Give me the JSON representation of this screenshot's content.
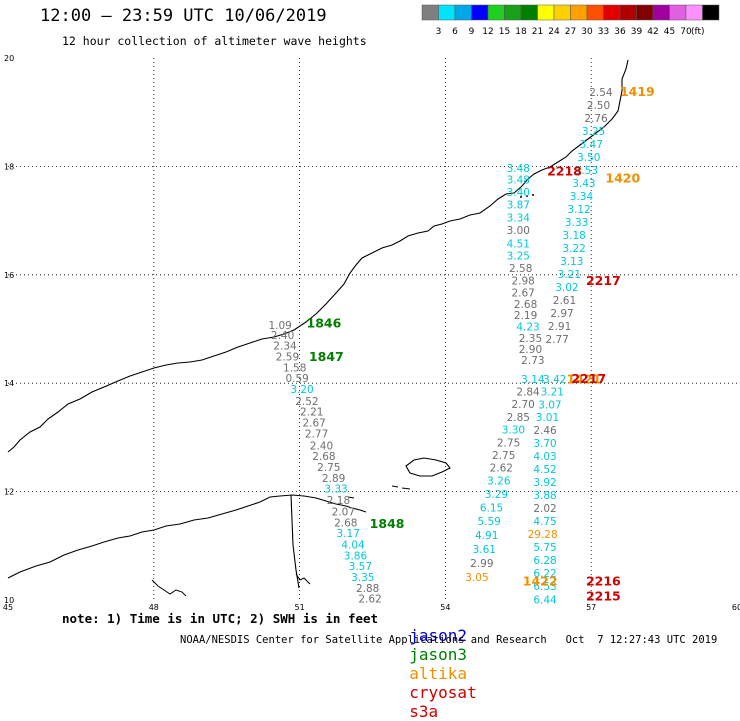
{
  "header": {
    "title": "12:00 – 23:59 UTC 10/06/2019",
    "subtitle": "12 hour collection of altimeter wave heights"
  },
  "scale": {
    "unit": "(ft)",
    "labels": [
      "3",
      "6",
      "9",
      "12",
      "15",
      "18",
      "21",
      "24",
      "27",
      "30",
      "33",
      "36",
      "39",
      "42",
      "45",
      "70"
    ],
    "colors": [
      "#7f7f7f",
      "#00e5ff",
      "#00a8e8",
      "#0000ff",
      "#20d020",
      "#18a018",
      "#008000",
      "#ffff00",
      "#ffd000",
      "#ffa000",
      "#ff5000",
      "#e00000",
      "#b00000",
      "#800000",
      "#a000a0",
      "#e060e0",
      "#ff90ff",
      "#000000"
    ]
  },
  "axes": {
    "x_ticks": [
      "45",
      "48",
      "51",
      "54",
      "57",
      "60"
    ],
    "y_ticks": [
      "10",
      "12",
      "14",
      "16",
      "18",
      "20"
    ],
    "lon_range": [
      45,
      60
    ],
    "lat_range": [
      10,
      20
    ]
  },
  "colors": {
    "gray": "#6e6e6e",
    "cyan": "#00c8d8",
    "green": "#008000",
    "orange": "#f09000",
    "red": "#d00000",
    "blue": "#0000d0"
  },
  "passes": [
    {
      "label": "1846",
      "sat": "jason3",
      "lon": 51.5,
      "lat": 15.03
    },
    {
      "label": "1847",
      "sat": "jason3",
      "lon": 51.55,
      "lat": 14.41
    },
    {
      "label": "1848",
      "sat": "jason3",
      "lon": 52.8,
      "lat": 11.33
    },
    {
      "label": "1419",
      "sat": "altika",
      "lon": 57.95,
      "lat": 19.3
    },
    {
      "label": "1420",
      "sat": "altika",
      "lon": 57.65,
      "lat": 17.7
    },
    {
      "label": "1422",
      "sat": "altika",
      "lon": 55.95,
      "lat": 10.27
    },
    {
      "label": "1421",
      "sat": "altika",
      "lon": 56.85,
      "lat": 13.99
    },
    {
      "label": "2218",
      "sat": "s3a",
      "lon": 56.45,
      "lat": 17.83
    },
    {
      "label": "2217",
      "sat": "s3a",
      "lon": 57.25,
      "lat": 15.81
    },
    {
      "label": "2217",
      "sat": "s3a",
      "lon": 56.95,
      "lat": 14.0
    },
    {
      "label": "2216",
      "sat": "s3a",
      "lon": 57.25,
      "lat": 10.27
    },
    {
      "label": "2215",
      "sat": "s3a",
      "lon": 57.25,
      "lat": 9.99
    }
  ],
  "observations": [
    {
      "v": "1.09",
      "c": "gray",
      "lon": 50.6,
      "lat": 15.0
    },
    {
      "v": "2.40",
      "c": "gray",
      "lon": 50.65,
      "lat": 14.82
    },
    {
      "v": "2.34",
      "c": "gray",
      "lon": 50.7,
      "lat": 14.62
    },
    {
      "v": "2.59",
      "c": "gray",
      "lon": 50.75,
      "lat": 14.42
    },
    {
      "v": "1.58",
      "c": "gray",
      "lon": 50.9,
      "lat": 14.22
    },
    {
      "v": "0.59",
      "c": "gray",
      "lon": 50.95,
      "lat": 14.02
    },
    {
      "v": "3.20",
      "c": "cyan",
      "lon": 51.05,
      "lat": 13.82
    },
    {
      "v": "2.52",
      "c": "gray",
      "lon": 51.15,
      "lat": 13.6
    },
    {
      "v": "2.21",
      "c": "gray",
      "lon": 51.25,
      "lat": 13.4
    },
    {
      "v": "2.67",
      "c": "gray",
      "lon": 51.3,
      "lat": 13.2
    },
    {
      "v": "2.77",
      "c": "gray",
      "lon": 51.35,
      "lat": 13.0
    },
    {
      "v": "2.40",
      "c": "gray",
      "lon": 51.45,
      "lat": 12.78
    },
    {
      "v": "2.68",
      "c": "gray",
      "lon": 51.5,
      "lat": 12.58
    },
    {
      "v": "2.75",
      "c": "gray",
      "lon": 51.6,
      "lat": 12.38
    },
    {
      "v": "2.89",
      "c": "gray",
      "lon": 51.7,
      "lat": 12.18
    },
    {
      "v": "3.33",
      "c": "cyan",
      "lon": 51.75,
      "lat": 11.98
    },
    {
      "v": "2.18",
      "c": "gray",
      "lon": 51.8,
      "lat": 11.77
    },
    {
      "v": "2.07",
      "c": "gray",
      "lon": 51.9,
      "lat": 11.56
    },
    {
      "v": "2.68",
      "c": "gray",
      "lon": 51.95,
      "lat": 11.36
    },
    {
      "v": "3.17",
      "c": "cyan",
      "lon": 52.0,
      "lat": 11.16
    },
    {
      "v": "4.04",
      "c": "cyan",
      "lon": 52.1,
      "lat": 10.95
    },
    {
      "v": "3.86",
      "c": "cyan",
      "lon": 52.15,
      "lat": 10.75
    },
    {
      "v": "3.57",
      "c": "cyan",
      "lon": 52.25,
      "lat": 10.55
    },
    {
      "v": "3.35",
      "c": "cyan",
      "lon": 52.3,
      "lat": 10.35
    },
    {
      "v": "2.88",
      "c": "gray",
      "lon": 52.4,
      "lat": 10.15
    },
    {
      "v": "2.62",
      "c": "gray",
      "lon": 52.45,
      "lat": 9.95
    },
    {
      "v": "3.48",
      "c": "cyan",
      "lon": 55.5,
      "lat": 17.9
    },
    {
      "v": "3.48",
      "c": "cyan",
      "lon": 55.5,
      "lat": 17.68
    },
    {
      "v": "3.40",
      "c": "cyan",
      "lon": 55.5,
      "lat": 17.45
    },
    {
      "v": "3.87",
      "c": "cyan",
      "lon": 55.5,
      "lat": 17.22
    },
    {
      "v": "3.34",
      "c": "cyan",
      "lon": 55.5,
      "lat": 16.98
    },
    {
      "v": "3.00",
      "c": "gray",
      "lon": 55.5,
      "lat": 16.75
    },
    {
      "v": "4.51",
      "c": "cyan",
      "lon": 55.5,
      "lat": 16.5
    },
    {
      "v": "3.25",
      "c": "cyan",
      "lon": 55.5,
      "lat": 16.28
    },
    {
      "v": "2.58",
      "c": "gray",
      "lon": 55.55,
      "lat": 16.05
    },
    {
      "v": "2.98",
      "c": "gray",
      "lon": 55.6,
      "lat": 15.82
    },
    {
      "v": "2.67",
      "c": "gray",
      "lon": 55.6,
      "lat": 15.6
    },
    {
      "v": "2.68",
      "c": "gray",
      "lon": 55.65,
      "lat": 15.39
    },
    {
      "v": "2.19",
      "c": "gray",
      "lon": 55.65,
      "lat": 15.18
    },
    {
      "v": "4.23",
      "c": "cyan",
      "lon": 55.7,
      "lat": 14.97
    },
    {
      "v": "2.35",
      "c": "gray",
      "lon": 55.75,
      "lat": 14.76
    },
    {
      "v": "2.90",
      "c": "gray",
      "lon": 55.75,
      "lat": 14.56
    },
    {
      "v": "2.73",
      "c": "gray",
      "lon": 55.8,
      "lat": 14.35
    },
    {
      "v": "3.14",
      "c": "cyan",
      "lon": 55.8,
      "lat": 14.0
    },
    {
      "v": "2.84",
      "c": "gray",
      "lon": 55.7,
      "lat": 13.77
    },
    {
      "v": "2.70",
      "c": "gray",
      "lon": 55.6,
      "lat": 13.54
    },
    {
      "v": "2.85",
      "c": "gray",
      "lon": 55.5,
      "lat": 13.3
    },
    {
      "v": "3.30",
      "c": "cyan",
      "lon": 55.4,
      "lat": 13.07
    },
    {
      "v": "2.75",
      "c": "gray",
      "lon": 55.3,
      "lat": 12.83
    },
    {
      "v": "2.75",
      "c": "gray",
      "lon": 55.2,
      "lat": 12.6
    },
    {
      "v": "2.62",
      "c": "gray",
      "lon": 55.15,
      "lat": 12.37
    },
    {
      "v": "3.26",
      "c": "cyan",
      "lon": 55.1,
      "lat": 12.13
    },
    {
      "v": "3.29",
      "c": "cyan",
      "lon": 55.05,
      "lat": 11.88
    },
    {
      "v": "6.15",
      "c": "cyan",
      "lon": 54.95,
      "lat": 11.63
    },
    {
      "v": "5.59",
      "c": "cyan",
      "lon": 54.9,
      "lat": 11.38
    },
    {
      "v": "4.91",
      "c": "cyan",
      "lon": 54.85,
      "lat": 11.13
    },
    {
      "v": "3.61",
      "c": "cyan",
      "lon": 54.8,
      "lat": 10.87
    },
    {
      "v": "2.99",
      "c": "gray",
      "lon": 54.75,
      "lat": 10.61
    },
    {
      "v": "3.05",
      "c": "orange",
      "lon": 54.65,
      "lat": 10.35
    },
    {
      "v": "2.54",
      "c": "gray",
      "lon": 57.2,
      "lat": 19.3
    },
    {
      "v": "2.50",
      "c": "gray",
      "lon": 57.15,
      "lat": 19.06
    },
    {
      "v": "2.76",
      "c": "gray",
      "lon": 57.1,
      "lat": 18.82
    },
    {
      "v": "3.25",
      "c": "cyan",
      "lon": 57.05,
      "lat": 18.58
    },
    {
      "v": "3.47",
      "c": "cyan",
      "lon": 57.0,
      "lat": 18.34
    },
    {
      "v": "3.50",
      "c": "cyan",
      "lon": 56.95,
      "lat": 18.1
    },
    {
      "v": "3.53",
      "c": "cyan",
      "lon": 56.9,
      "lat": 17.86
    },
    {
      "v": "3.43",
      "c": "cyan",
      "lon": 56.85,
      "lat": 17.62
    },
    {
      "v": "3.34",
      "c": "cyan",
      "lon": 56.8,
      "lat": 17.38
    },
    {
      "v": "3.12",
      "c": "cyan",
      "lon": 56.75,
      "lat": 17.14
    },
    {
      "v": "3.33",
      "c": "cyan",
      "lon": 56.7,
      "lat": 16.9
    },
    {
      "v": "3.18",
      "c": "cyan",
      "lon": 56.65,
      "lat": 16.66
    },
    {
      "v": "3.22",
      "c": "cyan",
      "lon": 56.65,
      "lat": 16.42
    },
    {
      "v": "3.13",
      "c": "cyan",
      "lon": 56.6,
      "lat": 16.18
    },
    {
      "v": "3.21",
      "c": "cyan",
      "lon": 56.55,
      "lat": 15.94
    },
    {
      "v": "3.02",
      "c": "cyan",
      "lon": 56.5,
      "lat": 15.7
    },
    {
      "v": "2.61",
      "c": "gray",
      "lon": 56.45,
      "lat": 15.46
    },
    {
      "v": "2.97",
      "c": "gray",
      "lon": 56.4,
      "lat": 15.22
    },
    {
      "v": "2.91",
      "c": "gray",
      "lon": 56.35,
      "lat": 14.98
    },
    {
      "v": "2.77",
      "c": "gray",
      "lon": 56.3,
      "lat": 14.74
    },
    {
      "v": "3.42",
      "c": "cyan",
      "lon": 56.25,
      "lat": 14.0
    },
    {
      "v": "3.21",
      "c": "cyan",
      "lon": 56.2,
      "lat": 13.77
    },
    {
      "v": "3.07",
      "c": "cyan",
      "lon": 56.15,
      "lat": 13.53
    },
    {
      "v": "3.01",
      "c": "cyan",
      "lon": 56.1,
      "lat": 13.3
    },
    {
      "v": "2.46",
      "c": "gray",
      "lon": 56.05,
      "lat": 13.06
    },
    {
      "v": "3.70",
      "c": "cyan",
      "lon": 56.05,
      "lat": 12.82
    },
    {
      "v": "4.03",
      "c": "cyan",
      "lon": 56.05,
      "lat": 12.58
    },
    {
      "v": "4.52",
      "c": "cyan",
      "lon": 56.05,
      "lat": 12.34
    },
    {
      "v": "3.92",
      "c": "cyan",
      "lon": 56.05,
      "lat": 12.1
    },
    {
      "v": "3.88",
      "c": "cyan",
      "lon": 56.05,
      "lat": 11.86
    },
    {
      "v": "2.02",
      "c": "gray",
      "lon": 56.05,
      "lat": 11.62
    },
    {
      "v": "4.75",
      "c": "cyan",
      "lon": 56.05,
      "lat": 11.38
    },
    {
      "v": "29.28",
      "c": "orange",
      "lon": 56.0,
      "lat": 11.14
    },
    {
      "v": "5.75",
      "c": "cyan",
      "lon": 56.05,
      "lat": 10.9
    },
    {
      "v": "6.28",
      "c": "cyan",
      "lon": 56.05,
      "lat": 10.66
    },
    {
      "v": "6.22",
      "c": "cyan",
      "lon": 56.05,
      "lat": 10.42
    },
    {
      "v": "6.53",
      "c": "cyan",
      "lon": 56.05,
      "lat": 10.18
    },
    {
      "v": "6.44",
      "c": "cyan",
      "lon": 56.05,
      "lat": 9.94
    }
  ],
  "note": "note: 1) Time is in UTC; 2) SWH is in feet",
  "legend": [
    {
      "label": "jason2",
      "color": "#0000d0"
    },
    {
      "label": "jason3",
      "color": "#008000"
    },
    {
      "label": "altika",
      "color": "#f09000"
    },
    {
      "label": "cryosat",
      "color": "#d00000"
    },
    {
      "label": "s3a",
      "color": "#d00000"
    }
  ],
  "footer": "NOAA/NESDIS Center for Satellite Applications and Research   Oct  7 12:27:43 UTC 2019"
}
